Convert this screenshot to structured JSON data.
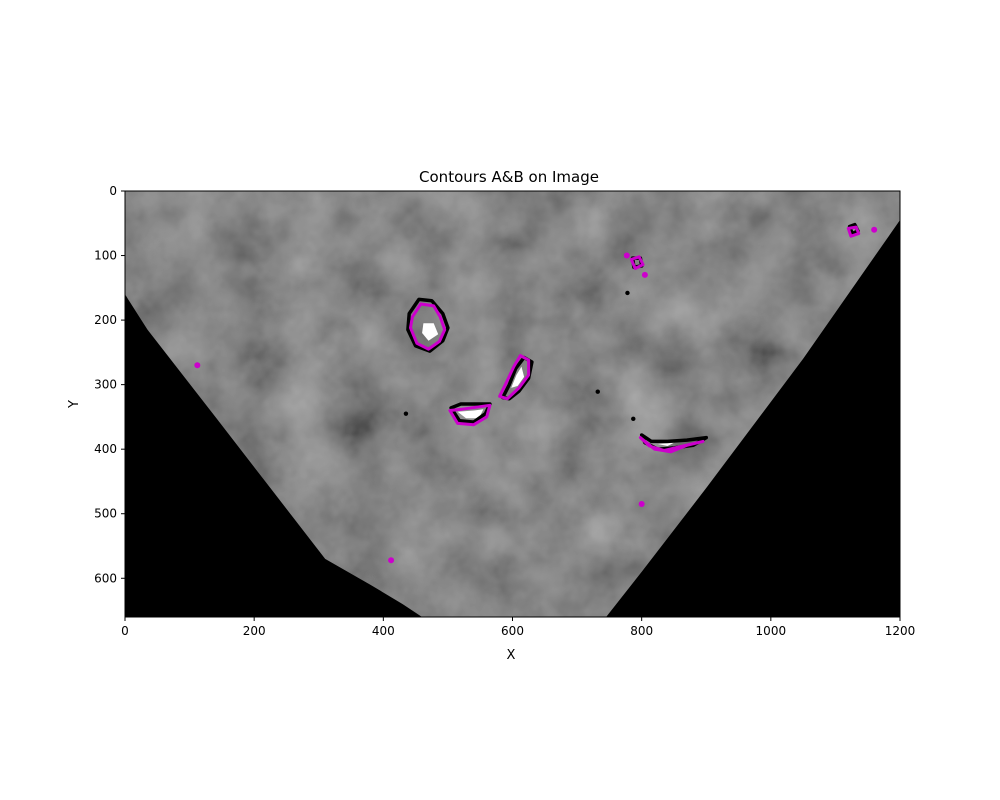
{
  "chart_data": {
    "type": "image",
    "title": "Contours A&B on Image",
    "xlabel": "X",
    "ylabel": "Y",
    "xlim": [
      0,
      1200
    ],
    "ylim": [
      660,
      0
    ],
    "xticks": [
      0,
      200,
      400,
      600,
      800,
      1000,
      1200
    ],
    "yticks": [
      0,
      100,
      200,
      300,
      400,
      500,
      600
    ],
    "grid": false,
    "colors": {
      "background": "#000000",
      "image_gray": "#5a5a5a",
      "contour_a": "#000000",
      "contour_b": "#cc00cc",
      "highlight": "#ffffff"
    },
    "image_region": [
      [
        0,
        160
      ],
      [
        35,
        215
      ],
      [
        140,
        350
      ],
      [
        225,
        460
      ],
      [
        310,
        570
      ],
      [
        380,
        610
      ],
      [
        430,
        640
      ],
      [
        460,
        660
      ],
      [
        745,
        660
      ],
      [
        800,
        590
      ],
      [
        900,
        460
      ],
      [
        1050,
        260
      ],
      [
        1200,
        45
      ],
      [
        1200,
        0
      ],
      [
        0,
        0
      ]
    ],
    "contour_groups": [
      {
        "center": [
          470,
          215
        ],
        "contour_a": [
          [
            440,
            190
          ],
          [
            455,
            168
          ],
          [
            475,
            170
          ],
          [
            492,
            190
          ],
          [
            500,
            212
          ],
          [
            492,
            232
          ],
          [
            472,
            248
          ],
          [
            450,
            240
          ],
          [
            438,
            215
          ]
        ],
        "contour_b": [
          [
            445,
            195
          ],
          [
            458,
            175
          ],
          [
            478,
            178
          ],
          [
            488,
            195
          ],
          [
            495,
            215
          ],
          [
            487,
            233
          ],
          [
            470,
            245
          ],
          [
            452,
            236
          ],
          [
            442,
            212
          ]
        ],
        "highlight": [
          [
            462,
            205
          ],
          [
            478,
            205
          ],
          [
            485,
            222
          ],
          [
            470,
            232
          ],
          [
            460,
            220
          ]
        ]
      },
      {
        "center": [
          532,
          342
        ],
        "contour_a": [
          [
            505,
            336
          ],
          [
            520,
            330
          ],
          [
            565,
            330
          ],
          [
            558,
            345
          ],
          [
            540,
            358
          ],
          [
            518,
            356
          ]
        ],
        "contour_b": [
          [
            503,
            340
          ],
          [
            522,
            338
          ],
          [
            565,
            332
          ],
          [
            560,
            350
          ],
          [
            540,
            362
          ],
          [
            515,
            360
          ]
        ],
        "highlight": [
          [
            515,
            342
          ],
          [
            540,
            340
          ],
          [
            555,
            338
          ],
          [
            548,
            352
          ],
          [
            528,
            352
          ]
        ]
      },
      {
        "center": [
          605,
          290
        ],
        "contour_a": [
          [
            585,
            320
          ],
          [
            595,
            300
          ],
          [
            605,
            275
          ],
          [
            618,
            258
          ],
          [
            630,
            265
          ],
          [
            625,
            290
          ],
          [
            610,
            310
          ],
          [
            595,
            322
          ]
        ],
        "contour_b": [
          [
            580,
            318
          ],
          [
            590,
            298
          ],
          [
            602,
            272
          ],
          [
            612,
            255
          ],
          [
            625,
            262
          ],
          [
            625,
            285
          ],
          [
            610,
            305
          ],
          [
            592,
            322
          ]
        ],
        "highlight": [
          [
            598,
            305
          ],
          [
            606,
            285
          ],
          [
            614,
            272
          ],
          [
            618,
            288
          ],
          [
            608,
            302
          ]
        ]
      },
      {
        "center": [
          830,
          390
        ],
        "contour_a": [
          [
            800,
            378
          ],
          [
            815,
            388
          ],
          [
            840,
            388
          ],
          [
            870,
            386
          ],
          [
            900,
            382
          ],
          [
            880,
            394
          ],
          [
            850,
            398
          ],
          [
            825,
            400
          ],
          [
            805,
            390
          ]
        ],
        "contour_b": [
          [
            798,
            382
          ],
          [
            812,
            395
          ],
          [
            835,
            402
          ],
          [
            860,
            396
          ],
          [
            895,
            388
          ],
          [
            870,
            394
          ],
          [
            845,
            404
          ],
          [
            820,
            400
          ]
        ],
        "highlight": [
          [
            825,
            392
          ],
          [
            850,
            390
          ],
          [
            840,
            395
          ]
        ]
      },
      {
        "center": [
          792,
          110
        ],
        "contour_a": [
          [
            786,
            104
          ],
          [
            798,
            104
          ],
          [
            800,
            116
          ],
          [
            788,
            118
          ]
        ],
        "contour_b": [
          [
            784,
            106
          ],
          [
            796,
            102
          ],
          [
            802,
            114
          ],
          [
            790,
            120
          ]
        ],
        "highlight": []
      },
      {
        "center": [
          1145,
          60
        ],
        "contour_a": [
          [
            1122,
            55
          ],
          [
            1130,
            52
          ],
          [
            1135,
            62
          ],
          [
            1126,
            66
          ]
        ],
        "contour_b": [
          [
            1120,
            58
          ],
          [
            1132,
            56
          ],
          [
            1136,
            66
          ],
          [
            1124,
            70
          ]
        ],
        "highlight": []
      }
    ],
    "small_blobs": [
      {
        "type": "b",
        "x": 777,
        "y": 100
      },
      {
        "type": "b",
        "x": 805,
        "y": 130
      },
      {
        "type": "b",
        "x": 1160,
        "y": 60
      },
      {
        "type": "b",
        "x": 112,
        "y": 270
      },
      {
        "type": "b",
        "x": 412,
        "y": 572
      },
      {
        "type": "a",
        "x": 732,
        "y": 311
      },
      {
        "type": "a",
        "x": 435,
        "y": 345
      },
      {
        "type": "b",
        "x": 800,
        "y": 485
      },
      {
        "type": "a",
        "x": 778,
        "y": 158
      },
      {
        "type": "a",
        "x": 787,
        "y": 353
      }
    ]
  }
}
